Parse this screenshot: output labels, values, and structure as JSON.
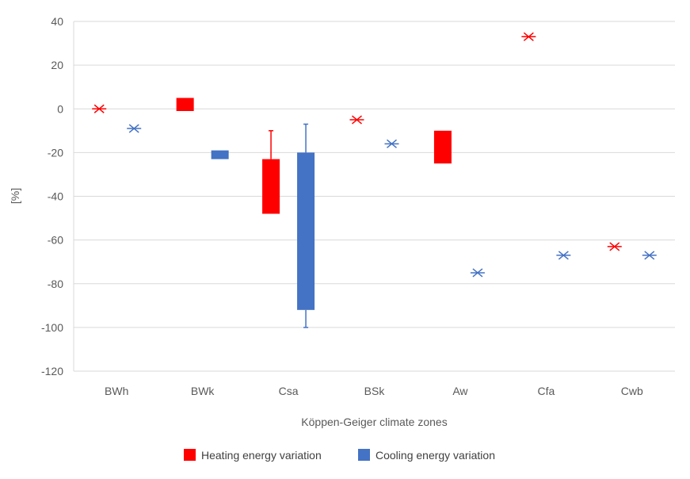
{
  "chart_data": {
    "type": "box",
    "title": "",
    "xlabel": "Köppen-Geiger climate zones",
    "ylabel": "[%]",
    "ylim": [
      -120,
      40
    ],
    "yticks": [
      40,
      20,
      0,
      -20,
      -40,
      -60,
      -80,
      -100,
      -120
    ],
    "grid": "horizontal",
    "legend_position": "bottom",
    "categories": [
      "BWh",
      "BWk",
      "Csa",
      "BSk",
      "Aw",
      "Cfa",
      "Cwb"
    ],
    "series": [
      {
        "name": "Heating energy variation",
        "color": "#ff0000",
        "points": [
          {
            "category": "BWh",
            "kind": "point",
            "value": 0
          },
          {
            "category": "BWk",
            "kind": "box",
            "low": -1,
            "high": 5
          },
          {
            "category": "Csa",
            "kind": "box",
            "low": -48,
            "high": -23,
            "whisker_low": -48,
            "whisker_high": -10
          },
          {
            "category": "BSk",
            "kind": "point",
            "value": -5
          },
          {
            "category": "Aw",
            "kind": "box",
            "low": -25,
            "high": -10
          },
          {
            "category": "Cfa",
            "kind": "point",
            "value": 33
          },
          {
            "category": "Cwb",
            "kind": "point",
            "value": -63
          }
        ]
      },
      {
        "name": "Cooling energy variation",
        "color": "#4472c4",
        "points": [
          {
            "category": "BWh",
            "kind": "point",
            "value": -9
          },
          {
            "category": "BWk",
            "kind": "box",
            "low": -23,
            "high": -19
          },
          {
            "category": "Csa",
            "kind": "box",
            "low": -92,
            "high": -20,
            "whisker_low": -100,
            "whisker_high": -7
          },
          {
            "category": "BSk",
            "kind": "point",
            "value": -16
          },
          {
            "category": "Aw",
            "kind": "point",
            "value": -75
          },
          {
            "category": "Cfa",
            "kind": "point",
            "value": -67
          },
          {
            "category": "Cwb",
            "kind": "point",
            "value": -67
          }
        ]
      }
    ]
  }
}
